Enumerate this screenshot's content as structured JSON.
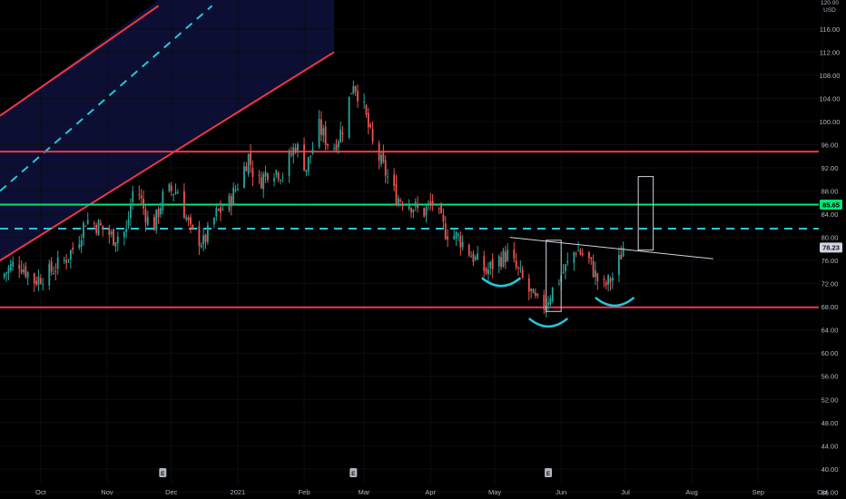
{
  "chart_data": {
    "type": "candlestick",
    "price_axis": {
      "top_label": "120.00",
      "currency": "USD",
      "ticks": [
        "116.00",
        "112.00",
        "108.00",
        "104.00",
        "100.00",
        "96.00",
        "92.00",
        "88.00",
        "84.00",
        "80.00",
        "76.00",
        "72.00",
        "68.00",
        "64.00",
        "60.00",
        "56.00",
        "52.00",
        "48.00",
        "44.00",
        "40.00",
        "36.00"
      ],
      "range": [
        34.8,
        121
      ]
    },
    "time_axis": {
      "labels": [
        "Oct",
        "Nov",
        "Dec",
        "2021",
        "Feb",
        "Mar",
        "Apr",
        "May",
        "Jun",
        "Jul",
        "Aug",
        "Sep",
        "Oct"
      ],
      "label_dates": [
        "2020-10-01",
        "2020-11-01",
        "2020-12-01",
        "2021-01-01",
        "2021-02-01",
        "2021-03-01",
        "2021-04-01",
        "2021-05-01",
        "2021-06-01",
        "2021-07-01",
        "2021-08-01",
        "2021-09-01",
        "2021-10-01"
      ],
      "range": [
        "2020-09-12",
        "2021-10-12"
      ]
    },
    "series": [
      {
        "kind": "ohlc-close-path",
        "points": [
          [
            "2020-09-12",
            73
          ],
          [
            "2020-09-20",
            76
          ],
          [
            "2020-09-28",
            72.5
          ],
          [
            "2020-10-05",
            74
          ],
          [
            "2020-10-12",
            76
          ],
          [
            "2020-10-18",
            79
          ],
          [
            "2020-10-22",
            83
          ],
          [
            "2020-10-28",
            82
          ],
          [
            "2020-11-04",
            80
          ],
          [
            "2020-11-10",
            81
          ],
          [
            "2020-11-14",
            90
          ],
          [
            "2020-11-18",
            85
          ],
          [
            "2020-11-22",
            81
          ],
          [
            "2020-11-28",
            88
          ],
          [
            "2020-12-04",
            88
          ],
          [
            "2020-12-10",
            81
          ],
          [
            "2020-12-16",
            79
          ],
          [
            "2020-12-22",
            84
          ],
          [
            "2020-12-28",
            86
          ],
          [
            "2021-01-02",
            90
          ],
          [
            "2021-01-06",
            94
          ],
          [
            "2021-01-10",
            89
          ],
          [
            "2021-01-16",
            92
          ],
          [
            "2021-01-22",
            91
          ],
          [
            "2021-01-28",
            96
          ],
          [
            "2021-02-02",
            92
          ],
          [
            "2021-02-08",
            99
          ],
          [
            "2021-02-14",
            95
          ],
          [
            "2021-02-19",
            99
          ],
          [
            "2021-02-24",
            107
          ],
          [
            "2021-03-01",
            102
          ],
          [
            "2021-03-05",
            96
          ],
          [
            "2021-03-10",
            92
          ],
          [
            "2021-03-16",
            87
          ],
          [
            "2021-03-22",
            86
          ],
          [
            "2021-03-28",
            84
          ],
          [
            "2021-04-02",
            86
          ],
          [
            "2021-04-08",
            81
          ],
          [
            "2021-04-14",
            80
          ],
          [
            "2021-04-20",
            77
          ],
          [
            "2021-04-27",
            74
          ],
          [
            "2021-05-02",
            76
          ],
          [
            "2021-05-07",
            77
          ],
          [
            "2021-05-12",
            74
          ],
          [
            "2021-05-18",
            70
          ],
          [
            "2021-05-23",
            67.5
          ],
          [
            "2021-05-28",
            71
          ],
          [
            "2021-06-02",
            74
          ],
          [
            "2021-06-08",
            78
          ],
          [
            "2021-06-14",
            76
          ],
          [
            "2021-06-20",
            71
          ],
          [
            "2021-06-26",
            73.5
          ],
          [
            "2021-06-30",
            78.23
          ]
        ]
      }
    ],
    "last_price": "78.23",
    "last_price_value": 78.23,
    "horizontal_levels": [
      {
        "price": 94.8,
        "color": "#f23645",
        "style": "solid"
      },
      {
        "price": 85.65,
        "label": "85.65",
        "color": "#00e676",
        "style": "solid"
      },
      {
        "price": 81.5,
        "color": "#26c6da",
        "style": "dashed"
      },
      {
        "price": 67.9,
        "color": "#f23645",
        "style": "solid"
      }
    ],
    "channel": {
      "upper": [
        [
          "2020-09-12",
          101
        ],
        [
          "2020-11-25",
          120
        ]
      ],
      "middle": [
        [
          "2020-09-12",
          88
        ],
        [
          "2020-12-20",
          120
        ]
      ],
      "lower": [
        [
          "2020-09-12",
          76
        ],
        [
          "2021-02-15",
          112
        ]
      ],
      "line_color": "#f23645",
      "mid_color": "#26c6da",
      "fill_color": "#0c0f33"
    },
    "neckline": {
      "from": [
        "2021-05-08",
        80
      ],
      "to": [
        "2021-08-11",
        76.3
      ],
      "color": "#d1d4dc"
    },
    "shoulder_arcs": [
      {
        "x": [
          "2021-04-25",
          "2021-05-13"
        ],
        "y": 73.0,
        "depth": 1.4
      },
      {
        "x": [
          "2021-05-17",
          "2021-06-04"
        ],
        "y": 66.0,
        "depth": 1.4
      },
      {
        "x": [
          "2021-06-17",
          "2021-07-05"
        ],
        "y": 69.6,
        "depth": 1.4
      }
    ],
    "measure_boxes": [
      {
        "x": [
          "2021-05-25",
          "2021-06-01"
        ],
        "y": [
          67.2,
          79.5
        ],
        "color": "#d1d4dc"
      },
      {
        "x": [
          "2021-07-07",
          "2021-07-14"
        ],
        "y": [
          77.8,
          90.5
        ],
        "color": "#d1d4dc"
      }
    ],
    "earnings_markers": {
      "label": "E",
      "dates": [
        "2020-11-27",
        "2021-02-24",
        "2021-05-26"
      ]
    },
    "colors": {
      "up": "#26a69a",
      "down": "#ef5350",
      "background": "#000000",
      "grid": "#0b0d14"
    }
  }
}
